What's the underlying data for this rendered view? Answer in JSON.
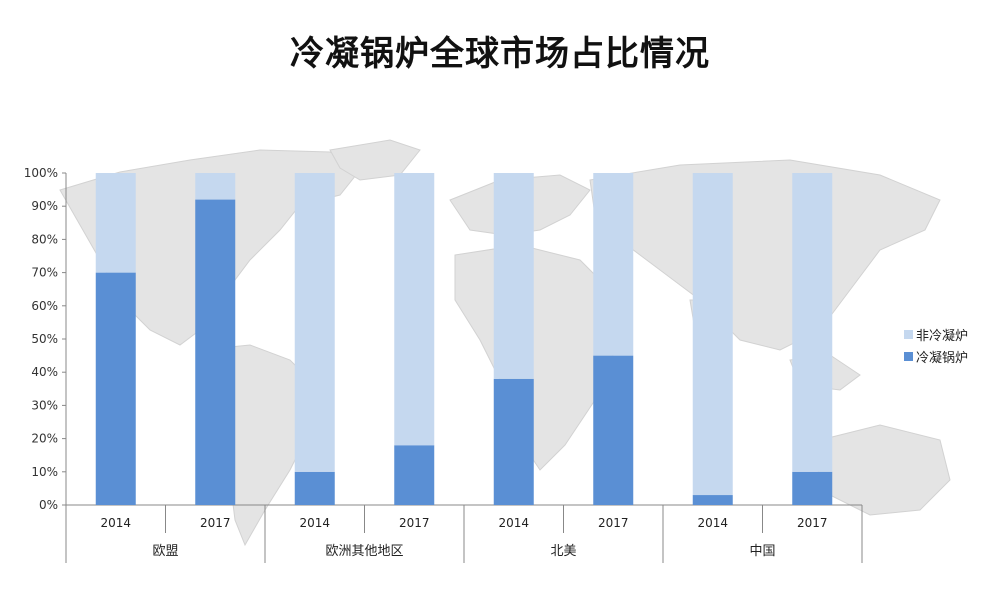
{
  "chart_data": {
    "type": "bar",
    "title": "冷凝锅炉全球市场占比情况",
    "stacked": true,
    "ylim": [
      0,
      100
    ],
    "y_ticks": [
      "0%",
      "10%",
      "20%",
      "30%",
      "40%",
      "50%",
      "60%",
      "70%",
      "80%",
      "90%",
      "100%"
    ],
    "groups": [
      {
        "label": "欧盟",
        "categories": [
          "2014",
          "2017"
        ]
      },
      {
        "label": "欧洲其他地区",
        "categories": [
          "2014",
          "2017"
        ]
      },
      {
        "label": "北美",
        "categories": [
          "2014",
          "2017"
        ]
      },
      {
        "label": "中国",
        "categories": [
          "2014",
          "2017"
        ]
      }
    ],
    "series": [
      {
        "name": "冷凝锅炉",
        "color": "#5a8fd4",
        "values": [
          70,
          92,
          10,
          18,
          38,
          45,
          3,
          10
        ]
      },
      {
        "name": "非冷凝炉",
        "color": "#c5d8ef",
        "values": [
          30,
          8,
          90,
          82,
          62,
          55,
          97,
          90
        ]
      }
    ],
    "legend_position": "right",
    "legend_order": [
      "非冷凝炉",
      "冷凝锅炉"
    ],
    "grid": false,
    "background": "world-map"
  }
}
